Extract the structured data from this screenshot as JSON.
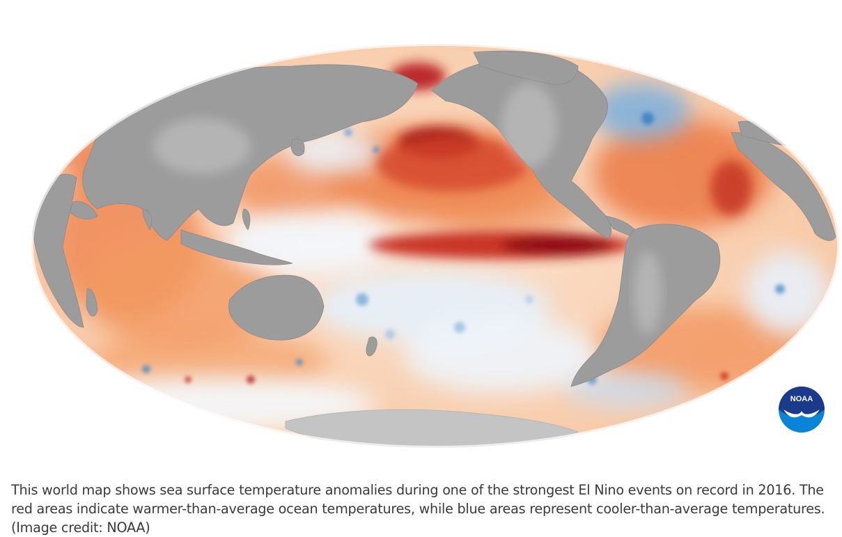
{
  "map": {
    "projection": "mollweide",
    "legend_meaning": {
      "warm_color": "#b4161b",
      "cool_color": "#3d86c6",
      "land_color": "#9b9b9b",
      "neutral_color": "#ffffff"
    }
  },
  "logo": {
    "text": "NOAA",
    "icon": "noaa-seagull-logo",
    "colors": {
      "top": "#1b3a8c",
      "bottom": "#0a84d6"
    }
  },
  "caption": {
    "text": "This world map shows sea surface temperature anomalies during one of the strongest El Nino events on record in 2016. The red areas indicate warmer-than-average ocean temperatures, while blue areas represent cooler-than-average temperatures. (Image credit: NOAA)"
  }
}
